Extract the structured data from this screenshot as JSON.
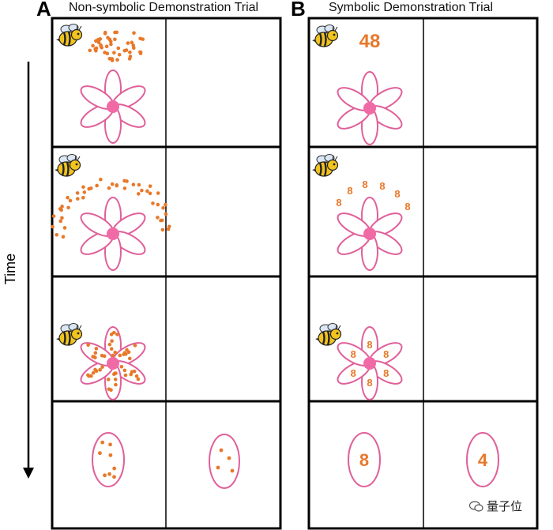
{
  "panels": [
    {
      "letter": "A",
      "title": "Non-symbolic Demonstration Trial",
      "rows": [
        {
          "cue": "dots",
          "cue_count": 48
        },
        {
          "cue": "dots",
          "cue_count": 48
        },
        {
          "cue": "dots-on-petals",
          "cue_count": 48
        },
        {
          "choices": [
            {
              "kind": "dots",
              "count": 8
            },
            {
              "kind": "dots",
              "count": 4
            }
          ]
        }
      ]
    },
    {
      "letter": "B",
      "title": "Symbolic Demonstration Trial",
      "rows": [
        {
          "cue": "numeral",
          "numeral": "48"
        },
        {
          "cue": "digits-arc",
          "digit": "8"
        },
        {
          "cue": "digits-on-petals",
          "digit": "8"
        },
        {
          "choices": [
            {
              "kind": "numeral",
              "label": "8"
            },
            {
              "kind": "numeral",
              "label": "4"
            }
          ]
        }
      ]
    }
  ],
  "axis": {
    "label": "Time"
  },
  "watermark": {
    "text": "量子位",
    "icon": "wechat-icon"
  },
  "colors": {
    "dot": "#e8782a",
    "petal_stroke": "#e0609a",
    "flower_center": "#f06aa6",
    "numeral": "#e8782a",
    "bee_body": "#f2c420",
    "frame": "#000000"
  },
  "icons": [
    "bee-icon",
    "flower-icon",
    "time-arrow"
  ]
}
